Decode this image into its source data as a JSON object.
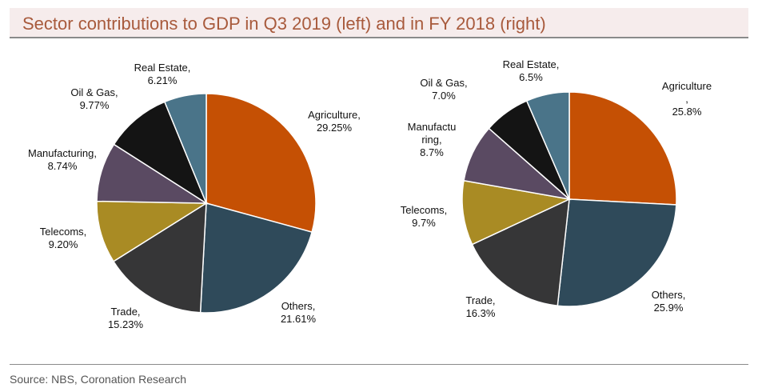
{
  "header": {
    "title": "Sector contributions to GDP in Q3 2019 (left) and in FY 2018 (right)"
  },
  "footer": {
    "source": "Source: NBS, Coronation Research"
  },
  "colors": {
    "Agriculture": "#c55004",
    "Others": "#2f4a5a",
    "Trade": "#363637",
    "Telecoms": "#a98b24",
    "Manufacturing": "#5a4a62",
    "Oil & Gas": "#141414",
    "Real Estate": "#4a7489"
  },
  "chart_data": [
    {
      "type": "pie",
      "slices": [
        {
          "name": "Agriculture",
          "value": 29.25,
          "label": [
            "Agriculture,",
            "29.25%"
          ]
        },
        {
          "name": "Others",
          "value": 21.61,
          "label": [
            "Others,",
            "21.61%"
          ]
        },
        {
          "name": "Trade",
          "value": 15.23,
          "label": [
            "Trade,",
            "15.23%"
          ]
        },
        {
          "name": "Telecoms",
          "value": 9.2,
          "label": [
            "Telecoms,",
            "9.20%"
          ]
        },
        {
          "name": "Manufacturing",
          "value": 8.74,
          "label": [
            "Manufacturing,",
            "8.74%"
          ]
        },
        {
          "name": "Oil & Gas",
          "value": 9.77,
          "label": [
            "Oil & Gas,",
            "9.77%"
          ]
        },
        {
          "name": "Real Estate",
          "value": 6.21,
          "label": [
            "Real Estate,",
            "6.21%"
          ]
        }
      ]
    },
    {
      "type": "pie",
      "slices": [
        {
          "name": "Agriculture",
          "value": 25.8,
          "label": [
            "Agriculture",
            ",",
            "25.8%"
          ]
        },
        {
          "name": "Others",
          "value": 25.9,
          "label": [
            "Others,",
            "25.9%"
          ]
        },
        {
          "name": "Trade",
          "value": 16.3,
          "label": [
            "Trade,",
            "16.3%"
          ]
        },
        {
          "name": "Telecoms",
          "value": 9.7,
          "label": [
            "Telecoms,",
            "9.7%"
          ]
        },
        {
          "name": "Manufacturing",
          "value": 8.7,
          "label": [
            "Manufactu",
            "ring,",
            "8.7%"
          ]
        },
        {
          "name": "Oil & Gas",
          "value": 7.0,
          "label": [
            "Oil & Gas,",
            "7.0%"
          ]
        },
        {
          "name": "Real Estate",
          "value": 6.5,
          "label": [
            "Real Estate,",
            "6.5%"
          ]
        }
      ]
    }
  ]
}
